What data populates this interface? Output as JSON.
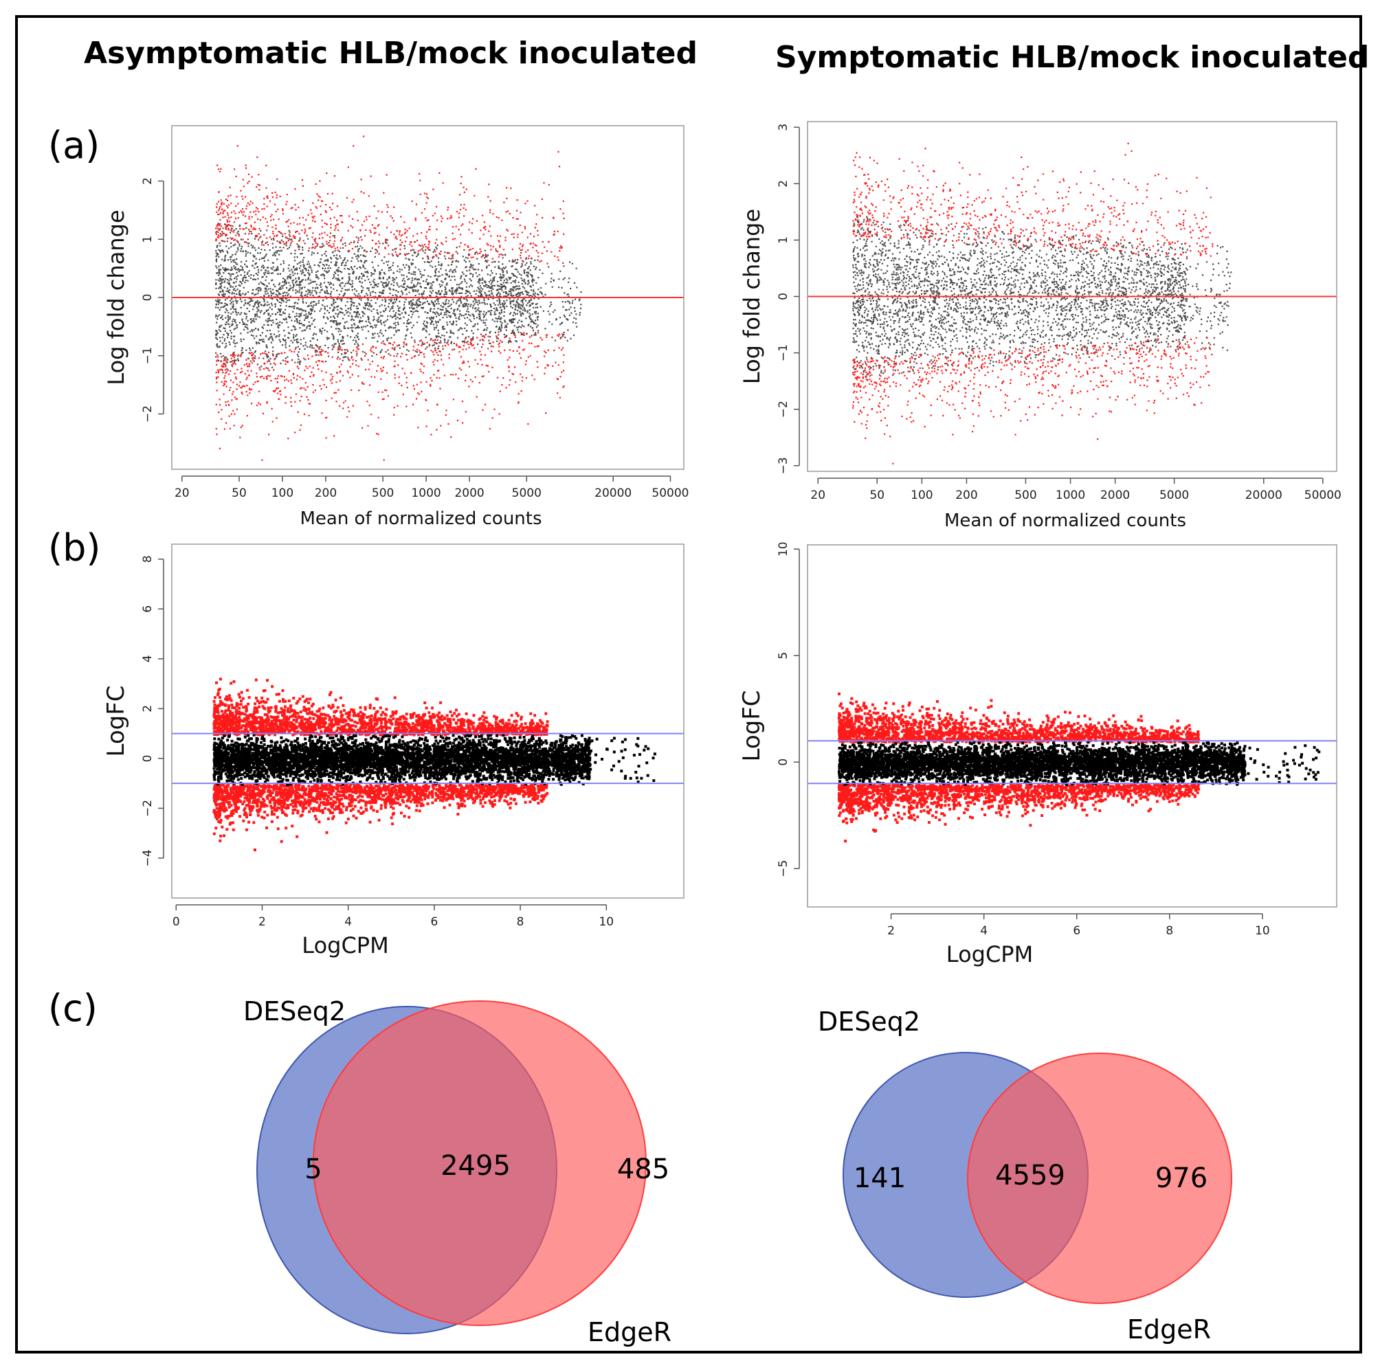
{
  "titles": {
    "left": "Asymptomatic HLB/mock  inoculated",
    "right": "Symptomatic HLB/mock  inoculated"
  },
  "panel_labels": {
    "a": "(a)",
    "b": "(b)",
    "c": "(c)"
  },
  "colors": {
    "nonsig_ma": "#4a4a4a",
    "sig": "#ff1a1a",
    "nonsig_edger": "#000000",
    "zero_line": "#ff3333",
    "threshold_line": "#8080ff",
    "venn_deseq2": "#5b75c8",
    "venn_edger": "#ff5c5c"
  },
  "chart_data": [
    {
      "type": "scatter",
      "panel": "(a) left",
      "xlabel": "Mean of normalized counts",
      "ylabel": "Log fold change",
      "x_scale": "log",
      "xlim": [
        17,
        62000
      ],
      "ylim": [
        -2.95,
        2.95
      ],
      "xticks": [
        20,
        50,
        100,
        200,
        500,
        1000,
        2000,
        5000,
        20000,
        50000
      ],
      "yticks": [
        -2,
        -1,
        0,
        1,
        2
      ],
      "hline": 0,
      "clip_value": 2.78,
      "spread_near_zero": 1.3,
      "spread_taper": 0.42,
      "series": [
        {
          "role": "nonsignificant",
          "color": "#4a4a4a"
        },
        {
          "role": "significant",
          "color": "#ff1a1a"
        }
      ]
    },
    {
      "type": "scatter",
      "panel": "(a) right",
      "xlabel": "Mean of normalized counts",
      "ylabel": "Log fold change",
      "x_scale": "log",
      "xlim": [
        17,
        62000
      ],
      "ylim": [
        -3.1,
        3.1
      ],
      "xticks": [
        20,
        50,
        100,
        200,
        500,
        1000,
        2000,
        5000,
        20000,
        50000
      ],
      "yticks": [
        -3,
        -2,
        -1,
        0,
        1,
        2,
        3
      ],
      "hline": 0,
      "clip_value": 2.95,
      "spread_near_zero": 1.45,
      "spread_taper": 0.35,
      "series": [
        {
          "role": "nonsignificant",
          "color": "#4a4a4a"
        },
        {
          "role": "significant",
          "color": "#ff1a1a"
        }
      ]
    },
    {
      "type": "scatter",
      "panel": "(b) left",
      "xlabel": "LogCPM",
      "ylabel": "LogFC",
      "xlim": [
        -0.1,
        11.8
      ],
      "ylim": [
        -5.6,
        8.6
      ],
      "xticks": [
        0,
        2,
        4,
        6,
        8,
        10
      ],
      "yticks": [
        -4,
        -2,
        0,
        2,
        4,
        6,
        8
      ],
      "hlines": [
        -1,
        1
      ],
      "series": [
        {
          "role": "nonsignificant",
          "color": "#000000"
        },
        {
          "role": "significant",
          "color": "#ff1a1a"
        }
      ]
    },
    {
      "type": "scatter",
      "panel": "(b) right",
      "xlabel": "LogCPM",
      "ylabel": "LogFC",
      "xlim": [
        0.2,
        11.6
      ],
      "ylim": [
        -6.8,
        10.2
      ],
      "xticks": [
        2,
        4,
        6,
        8,
        10
      ],
      "yticks": [
        -5,
        0,
        5,
        10
      ],
      "hlines": [
        -1,
        1
      ],
      "series": [
        {
          "role": "nonsignificant",
          "color": "#000000"
        },
        {
          "role": "significant",
          "color": "#ff1a1a"
        }
      ]
    },
    {
      "type": "venn",
      "panel": "(c) left",
      "sets": [
        "DESeq2",
        "EdgeR"
      ],
      "only_deseq2": 5,
      "both": 2495,
      "only_edger": 485
    },
    {
      "type": "venn",
      "panel": "(c) right",
      "sets": [
        "DESeq2",
        "EdgeR"
      ],
      "only_deseq2": 141,
      "both": 4559,
      "only_edger": 976
    }
  ]
}
